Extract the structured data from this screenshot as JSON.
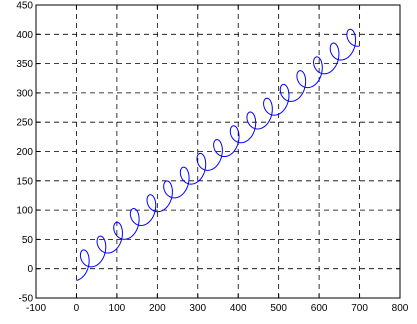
{
  "chart_data": {
    "type": "line",
    "title": "",
    "xlabel": "",
    "ylabel": "",
    "xlim": [
      -100,
      800
    ],
    "ylim": [
      -50,
      450
    ],
    "xticks": [
      -100,
      0,
      100,
      200,
      300,
      400,
      500,
      600,
      700,
      800
    ],
    "yticks": [
      -50,
      0,
      50,
      100,
      150,
      200,
      250,
      300,
      350,
      400,
      450
    ],
    "grid": true,
    "legend": "none",
    "color": "#0000ff",
    "series": [
      {
        "style": "cycloid-loops",
        "loop_count": 17,
        "start": [
          0,
          0
        ],
        "end": [
          700,
          400
        ],
        "loop_radius": 20
      }
    ]
  }
}
